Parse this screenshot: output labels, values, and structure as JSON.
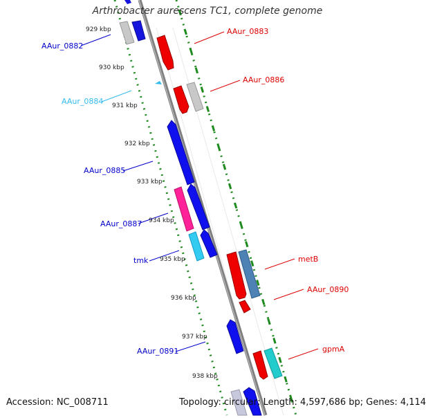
{
  "title": "Arthrobacter aurescens TC1, complete genome",
  "footer": {
    "accession": "Accession: NC_008711",
    "summary": "Topology: circular; Length: 4,597,686 bp; Genes: 4,114"
  },
  "colors": {
    "backbone": "#8c8c8c",
    "ticks": "#1f8a1f",
    "reverse_label": "#0000cc",
    "forward_label": "#dd0000",
    "reverse_small_label": "#33bbee"
  },
  "kbp_ticks": [
    "929 kbp",
    "930 kbp",
    "931 kbp",
    "932 kbp",
    "933 kbp",
    "934 kbp",
    "935 kbp",
    "936 kbp",
    "937 kbp",
    "938 kbp"
  ],
  "genes": [
    {
      "label": "AAur_0882",
      "strand": "-",
      "label_color": "#0000cc"
    },
    {
      "label": "AAur_0883",
      "strand": "+",
      "label_color": "#dd0000"
    },
    {
      "label": "AAur_0884",
      "strand": "-",
      "label_color": "#33bbee"
    },
    {
      "label": "AAur_0886",
      "strand": "+",
      "label_color": "#dd0000"
    },
    {
      "label": "AAur_0885",
      "strand": "-",
      "label_color": "#0000cc"
    },
    {
      "label": "AAur_0887",
      "strand": "-",
      "label_color": "#0000cc"
    },
    {
      "label": "tmk",
      "strand": "-",
      "label_color": "#0000cc"
    },
    {
      "label": "metB",
      "strand": "+",
      "label_color": "#dd0000"
    },
    {
      "label": "AAur_0890",
      "strand": "+",
      "label_color": "#dd0000"
    },
    {
      "label": "AAur_0891",
      "strand": "-",
      "label_color": "#0000cc"
    },
    {
      "label": "gpmA",
      "strand": "+",
      "label_color": "#dd0000"
    }
  ]
}
